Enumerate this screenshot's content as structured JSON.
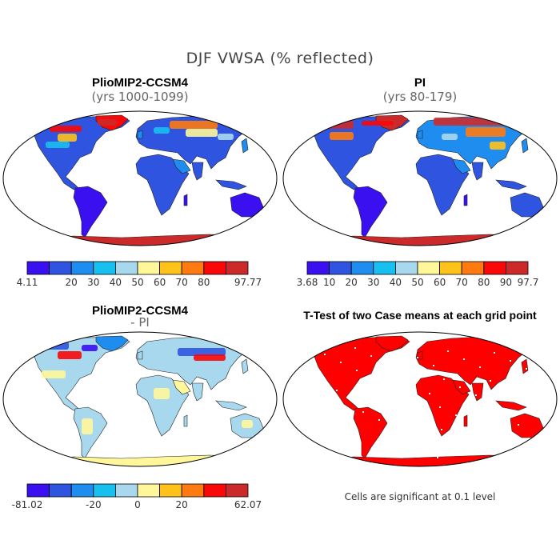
{
  "title": "DJF VWSA (% reflected)",
  "palette": [
    "#3a10f0",
    "#2f55e0",
    "#1f8cf0",
    "#18c0f0",
    "#a8d8ee",
    "#fff79a",
    "#ffc21a",
    "#ff7a10",
    "#f80808",
    "#cc2a2a"
  ],
  "panels": [
    {
      "title": "PlioMIP2-CCSM4",
      "subtitle": "(yrs 1000-1099)",
      "colorbar": {
        "min_label": "4.11",
        "labels": [
          "",
          "20",
          "30",
          "40",
          "50",
          "60",
          "70",
          "80",
          ""
        ],
        "max_label": "97.77"
      }
    },
    {
      "title": "PI",
      "subtitle": "(yrs 80-179)",
      "colorbar": {
        "min_label": "3.68",
        "labels": [
          "10",
          "20",
          "30",
          "40",
          "50",
          "60",
          "70",
          "80",
          "90"
        ],
        "max_label": "97.7"
      }
    },
    {
      "title": "PlioMIP2-CCSM4",
      "subtitle": "- PI",
      "colorbar": {
        "min_label": "-81.02",
        "labels": [
          "",
          "",
          "-20",
          "",
          "0",
          "",
          "20",
          "",
          ""
        ],
        "max_label": "62.07"
      }
    },
    {
      "title": "T-Test of two Case means at each grid point",
      "note": "Cells are significant at 0.1 level"
    }
  ]
}
